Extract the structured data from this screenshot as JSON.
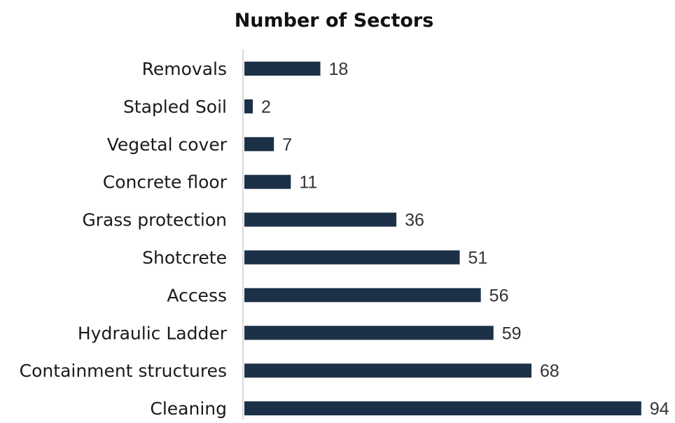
{
  "chart_data": {
    "type": "bar",
    "orientation": "horizontal",
    "title": "Number of Sectors",
    "xlabel": "",
    "ylabel": "",
    "categories": [
      "Removals",
      "Stapled Soil",
      "Vegetal cover",
      "Concrete floor",
      "Grass protection",
      "Shotcrete",
      "Access",
      "Hydraulic Ladder",
      "Containment structures",
      "Cleaning"
    ],
    "values": [
      18,
      2,
      7,
      11,
      36,
      51,
      56,
      59,
      68,
      94
    ],
    "xlim": [
      0,
      94
    ],
    "grid": false,
    "legend": false,
    "bar_color": "#1c3048",
    "axis_color": "#d9d9d9"
  }
}
